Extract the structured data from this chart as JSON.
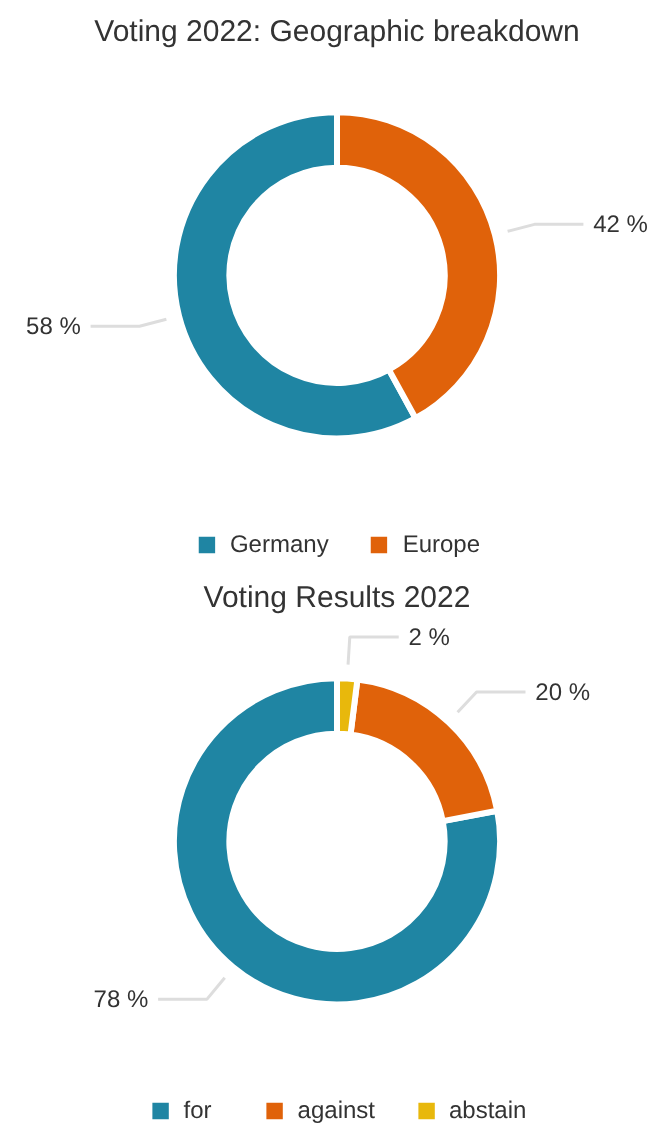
{
  "chart_data": [
    {
      "type": "donut",
      "title": "Voting 2022: Geographic breakdown",
      "categories": [
        "Germany",
        "Europe"
      ],
      "values": [
        58,
        42
      ],
      "colors": [
        "#1f85a3",
        "#e0620a"
      ],
      "value_labels": [
        "58 %",
        "42 %"
      ],
      "legend": "bottom"
    },
    {
      "type": "donut",
      "title": "Voting Results 2022",
      "categories": [
        "for",
        "against",
        "abstain"
      ],
      "values": [
        78,
        20,
        2
      ],
      "colors": [
        "#1f85a3",
        "#e0620a",
        "#e8b80c"
      ],
      "value_labels": [
        "78 %",
        "20 %",
        "2 %"
      ],
      "legend": "bottom"
    }
  ]
}
